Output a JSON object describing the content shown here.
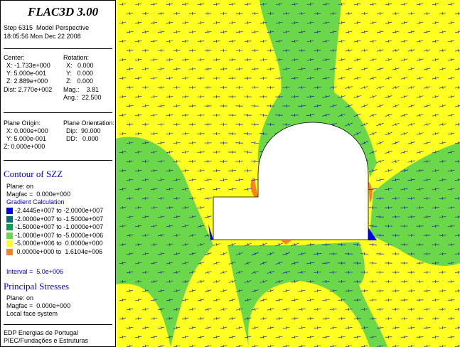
{
  "header": {
    "title": "FLAC3D 3.00",
    "step": "Step 6315  Model Perspective",
    "date": "18:05:56 Mon Dec 22 2008"
  },
  "view": {
    "center_label": "Center:",
    "center": [
      "X: -1.733e+000",
      "Y: 5.000e-001",
      "Z: 2.889e+000"
    ],
    "dist": "Dist: 2.770e+002",
    "rotation_label": "Rotation:",
    "rotation": [
      "X:   0.000",
      "Y:   0.000",
      "Z:   0.000"
    ],
    "mag": "Mag.:    3.81",
    "ang": "Ang.:  22.500"
  },
  "plane": {
    "origin_label": "Plane Origin:",
    "origin": [
      "X: 0.000e+000",
      "Y: 5.000e-001",
      "Z: 0.000e+000"
    ],
    "orientation_label": "Plane Orientation:",
    "orientation": [
      "Dip:  90.000",
      "DD:   0.000"
    ]
  },
  "contour": {
    "title": "Contour of SZZ",
    "plane": "Plane: on",
    "magfac": "Magfac =  0.000e+000",
    "gradient": "Gradient Calculation",
    "legend": [
      {
        "label": "-2.4445e+007 to -2.0000e+007",
        "color": "#0000ff"
      },
      {
        "label": "-2.0000e+007 to -1.5000e+007",
        "color": "#00707a"
      },
      {
        "label": "-1.5000e+007 to -1.0000e+007",
        "color": "#00a050"
      },
      {
        "label": "-1.0000e+007 to -5.0000e+006",
        "color": "#6ad84a"
      },
      {
        "label": "-5.0000e+006 to  0.0000e+000",
        "color": "#ffff22"
      },
      {
        "label": " 0.0000e+000 to  1.6104e+006",
        "color": "#ff8020"
      }
    ],
    "interval": "Interval =  5.0e+006"
  },
  "principal": {
    "title": "Principal Stresses",
    "plane": "Plane: on",
    "magfac": "Magfac =  0.000e+000",
    "system": "Local face system"
  },
  "footer": {
    "company": "EDP Energias de Portugal",
    "dept": "PIEC/Fundações e Estruturas"
  }
}
